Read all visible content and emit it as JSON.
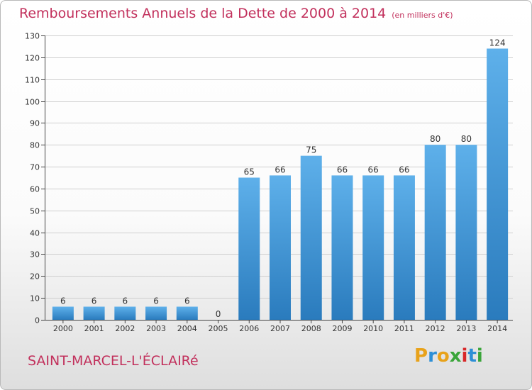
{
  "title": "Remboursements Annuels de la Dette de 2000 à 2014",
  "subtitle": "(en milliers d'€)",
  "city": "SAINT-MARCEL-L'ÉCLAIRé",
  "logo": {
    "letters": [
      "P",
      "r",
      "o",
      "x",
      "i",
      "t",
      "i"
    ],
    "colors": [
      "#e8a21a",
      "#2d8fd6",
      "#e8a21a",
      "#3aa53a",
      "#d8282a",
      "#2d8fd6",
      "#3aa53a"
    ]
  },
  "colors": {
    "title": "#c2305c",
    "bar_light": "#5eb0ea",
    "bar_dark": "#2a7bbd",
    "grid": "#cfcfcf"
  },
  "chart_data": {
    "type": "bar",
    "categories": [
      "2000",
      "2001",
      "2002",
      "2003",
      "2004",
      "2005",
      "2006",
      "2007",
      "2008",
      "2009",
      "2010",
      "2011",
      "2012",
      "2013",
      "2014"
    ],
    "values": [
      6,
      6,
      6,
      6,
      6,
      0,
      65,
      66,
      75,
      66,
      66,
      66,
      80,
      80,
      124
    ],
    "value_labels": [
      "6",
      "6",
      "6",
      "6",
      "6",
      "0",
      "65",
      "66",
      "75",
      "66",
      "66",
      "66",
      "80",
      "80",
      "124"
    ],
    "ylim": [
      0,
      130
    ],
    "yticks": [
      0,
      10,
      20,
      30,
      40,
      50,
      60,
      70,
      80,
      90,
      100,
      110,
      120,
      130
    ],
    "ytick_labels": [
      "0",
      "10",
      "20",
      "30",
      "40",
      "50",
      "60",
      "70",
      "80",
      "90",
      "100",
      "110",
      "120",
      "130"
    ],
    "grid": true
  }
}
